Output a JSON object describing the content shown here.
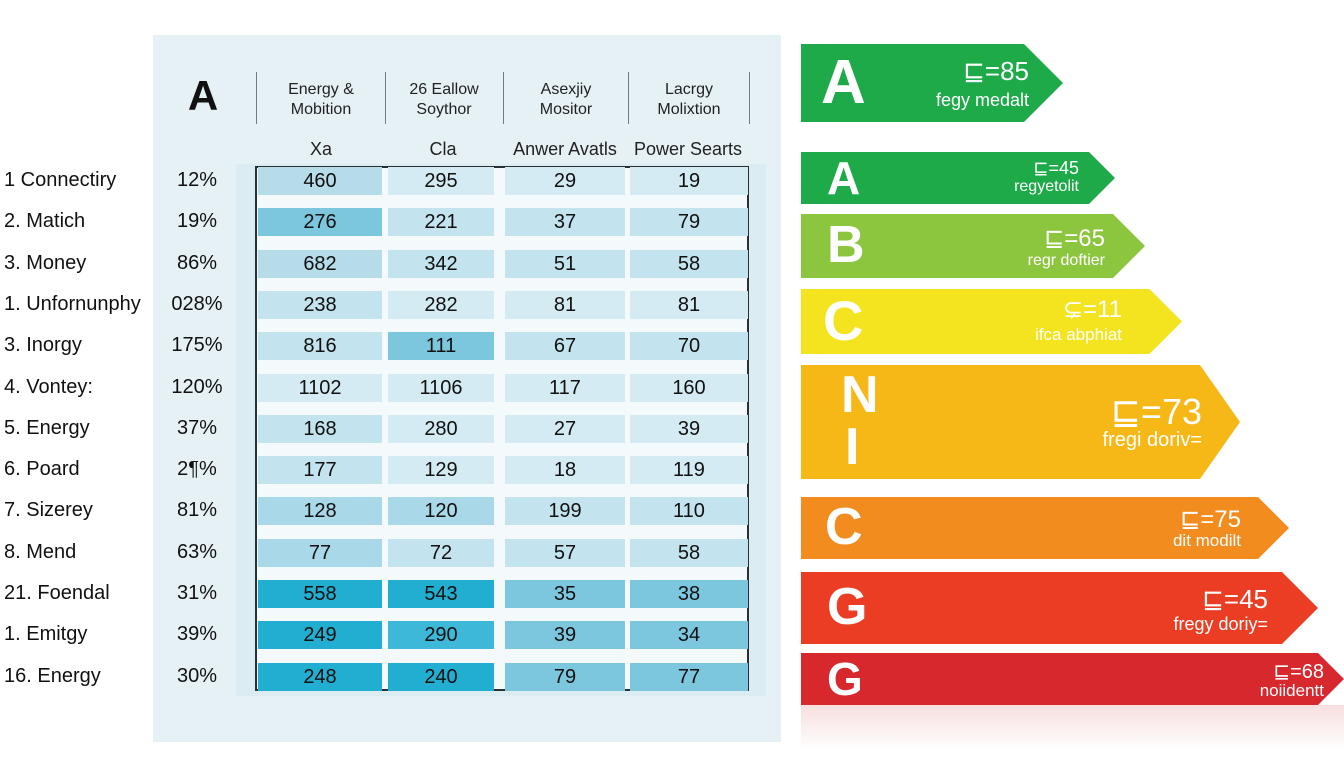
{
  "table": {
    "corner_letter": "A",
    "column_headers": [
      [
        "Energy &",
        "Mobition"
      ],
      [
        "26 Eallow",
        "Soythor"
      ],
      [
        "Asexjiy",
        "Mositor"
      ],
      [
        "Lacrgy",
        "Molixtion"
      ]
    ],
    "sub_headers": [
      "Xa",
      "Cla",
      "Anwer Avatls",
      "Power Searts"
    ],
    "rows": [
      {
        "label": "1 Connectiry",
        "pct": "12%",
        "cells": [
          "460",
          "295",
          "29",
          "19"
        ]
      },
      {
        "label": "2. Matich",
        "pct": "19%",
        "cells": [
          "276",
          "221",
          "37",
          "79"
        ]
      },
      {
        "label": "3. Money",
        "pct": "86%",
        "cells": [
          "682",
          "342",
          "51",
          "58"
        ]
      },
      {
        "label": "1. Unfornunphy",
        "pct": "028%",
        "cells": [
          "238",
          "282",
          "81",
          "81"
        ]
      },
      {
        "label": "3. Inorgy",
        "pct": "175%",
        "cells": [
          "816",
          "111",
          "67",
          "70"
        ]
      },
      {
        "label": "4. Vontey:",
        "pct": "120%",
        "cells": [
          "1102",
          "1106",
          "117",
          "160"
        ]
      },
      {
        "label": "5. Energy",
        "pct": "37%",
        "cells": [
          "168",
          "280",
          "27",
          "39"
        ]
      },
      {
        "label": "6. Poard",
        "pct": "2¶%",
        "cells": [
          "177",
          "129",
          "18",
          "119"
        ]
      },
      {
        "label": "7. Sizerey",
        "pct": "81%",
        "cells": [
          "128",
          "120",
          "199",
          "110"
        ]
      },
      {
        "label": "8. Mend",
        "pct": "63%",
        "cells": [
          "77",
          "72",
          "57",
          "58"
        ]
      },
      {
        "label": "21.  Foendal",
        "pct": "31%",
        "cells": [
          "558",
          "543",
          "35",
          "38"
        ]
      },
      {
        "label": "1. Emitgy",
        "pct": "39%",
        "cells": [
          "249",
          "290",
          "39",
          "34"
        ]
      },
      {
        "label": "16. Energy",
        "pct": "30%",
        "cells": [
          "248",
          "240",
          "79",
          "77"
        ]
      }
    ],
    "cell_colors": [
      [
        "#b6dcea",
        "#d4ebf3",
        "#d4ebf3",
        "#d4ebf3"
      ],
      [
        "#7cc6de",
        "#c3e3ee",
        "#c3e3ee",
        "#c3e3ee"
      ],
      [
        "#b6dcea",
        "#c3e3ee",
        "#c3e3ee",
        "#c3e3ee"
      ],
      [
        "#c3e3ee",
        "#d4ebf3",
        "#d4ebf3",
        "#d4ebf3"
      ],
      [
        "#c3e3ee",
        "#7cc6de",
        "#c3e3ee",
        "#c3e3ee"
      ],
      [
        "#d4ebf3",
        "#d4ebf3",
        "#d4ebf3",
        "#d4ebf3"
      ],
      [
        "#c3e3ee",
        "#d4ebf3",
        "#d4ebf3",
        "#d4ebf3"
      ],
      [
        "#c3e3ee",
        "#d4ebf3",
        "#d4ebf3",
        "#d4ebf3"
      ],
      [
        "#a9d8e8",
        "#a9d8e8",
        "#c3e3ee",
        "#c3e3ee"
      ],
      [
        "#a9d8e8",
        "#c3e3ee",
        "#c3e3ee",
        "#c3e3ee"
      ],
      [
        "#22aed1",
        "#22aed1",
        "#7cc6de",
        "#7cc6de"
      ],
      [
        "#22aed1",
        "#3db8d8",
        "#7cc6de",
        "#7cc6de"
      ],
      [
        "#22aed1",
        "#22aed1",
        "#7cc6de",
        "#7cc6de"
      ]
    ]
  },
  "ratings": [
    {
      "letter": "A",
      "value": "⊑=85",
      "sub": "fegy medalt",
      "color": "#1faa4a"
    },
    {
      "letter": "A",
      "value": "⊑=45",
      "sub": "regyetolit",
      "color": "#1faa4a"
    },
    {
      "letter": "B",
      "value": "⊑=65",
      "sub": "regr doftier",
      "color": "#8cc63f"
    },
    {
      "letter": "C",
      "value": "⊊=11",
      "sub": "ifca abphiat",
      "color": "#f4e31f"
    },
    {
      "letter": "N",
      "letter2": "I",
      "value": "⊑=73",
      "sub": "fregi doriv=",
      "color": "#f6b816"
    },
    {
      "letter": "C",
      "value": "⊑=75",
      "sub": "dit modilt",
      "color": "#f28c1f"
    },
    {
      "letter": "G",
      "value": "⊑=45",
      "sub": "fregy doriy=",
      "color": "#ea3d24"
    },
    {
      "letter": "G",
      "value": "⊑=68",
      "sub": "noiidentt",
      "color": "#d7282e"
    }
  ]
}
